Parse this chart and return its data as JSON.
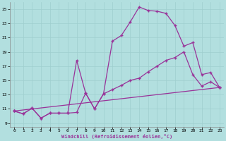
{
  "xlabel": "Windchill (Refroidissement éolien,°C)",
  "background_color": "#b2dfdf",
  "line_color": "#993399",
  "xlim": [
    -0.5,
    23.5
  ],
  "ylim": [
    8.5,
    26.0
  ],
  "yticks": [
    9,
    11,
    13,
    15,
    17,
    19,
    21,
    23,
    25
  ],
  "xticks": [
    0,
    1,
    2,
    3,
    4,
    5,
    6,
    7,
    8,
    9,
    10,
    11,
    12,
    13,
    14,
    15,
    16,
    17,
    18,
    19,
    20,
    21,
    22,
    23
  ],
  "series1_x": [
    0,
    1,
    2,
    3,
    4,
    5,
    6,
    7,
    8,
    9,
    10,
    11,
    12,
    13,
    14,
    15,
    16,
    17,
    18,
    19,
    20,
    21,
    22,
    23
  ],
  "series1_y": [
    10.7,
    10.3,
    11.1,
    9.7,
    10.4,
    10.4,
    10.4,
    10.5,
    13.2,
    11.0,
    13.1,
    20.5,
    21.3,
    23.2,
    25.3,
    24.8,
    24.7,
    24.4,
    22.7,
    19.8,
    20.3,
    15.8,
    16.1,
    14.0
  ],
  "series2_x": [
    0,
    1,
    2,
    3,
    4,
    5,
    6,
    7,
    8,
    9,
    10,
    11,
    12,
    13,
    14,
    15,
    16,
    17,
    18,
    19,
    20,
    21,
    22,
    23
  ],
  "series2_y": [
    10.7,
    10.3,
    11.1,
    9.7,
    10.4,
    10.4,
    10.4,
    17.8,
    13.2,
    11.0,
    13.1,
    13.7,
    14.3,
    15.0,
    15.3,
    16.2,
    17.0,
    17.8,
    18.2,
    19.0,
    15.8,
    14.2,
    14.8,
    14.0
  ],
  "series3_x": [
    0,
    23
  ],
  "series3_y": [
    10.7,
    14.0
  ],
  "grid_color": "#9fcece",
  "marker": "+"
}
